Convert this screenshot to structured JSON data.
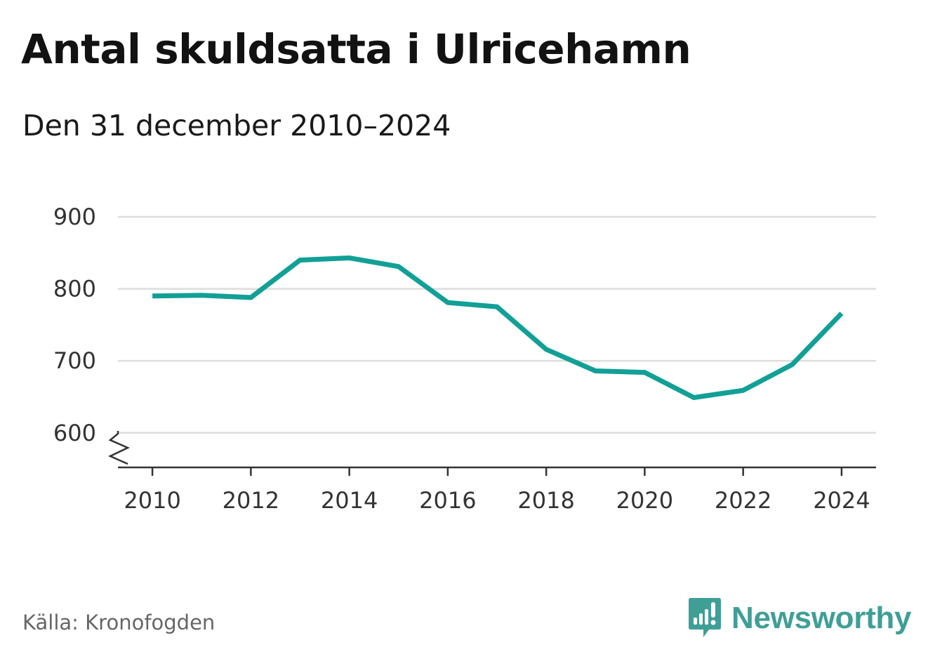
{
  "title": "Antal skuldsatta i Ulricehamn",
  "subtitle": "Den 31 december 2010–2024",
  "source": "Källa: Kronofogden",
  "brand": {
    "name": "Newsworthy",
    "icon": "newsworthy-logo-icon",
    "color": "#3f9f96"
  },
  "colors": {
    "line": "#12a096",
    "grid": "#dddddd",
    "axis": "#333333"
  },
  "chart_data": {
    "type": "line",
    "title": "Antal skuldsatta i Ulricehamn",
    "subtitle": "Den 31 december 2010–2024",
    "xlabel": "",
    "ylabel": "",
    "x": [
      2010,
      2011,
      2012,
      2013,
      2014,
      2015,
      2016,
      2017,
      2018,
      2019,
      2020,
      2021,
      2022,
      2023,
      2024
    ],
    "series": [
      {
        "name": "Antal skuldsatta",
        "values": [
          790,
          791,
          788,
          840,
          843,
          831,
          781,
          775,
          716,
          686,
          684,
          649,
          659,
          695,
          766
        ]
      }
    ],
    "xlim": [
      2009.3,
      2024.7
    ],
    "ylim": [
      552,
      900
    ],
    "yticks": [
      600,
      700,
      800,
      900
    ],
    "ytick_labels": [
      "600",
      "700",
      "800",
      "900"
    ],
    "xticks": [
      2010,
      2012,
      2014,
      2016,
      2018,
      2020,
      2022,
      2024
    ],
    "xtick_labels": [
      "2010",
      "2012",
      "2014",
      "2016",
      "2018",
      "2020",
      "2022",
      "2024"
    ],
    "axis_break": true,
    "grid": true,
    "legend": "none"
  }
}
